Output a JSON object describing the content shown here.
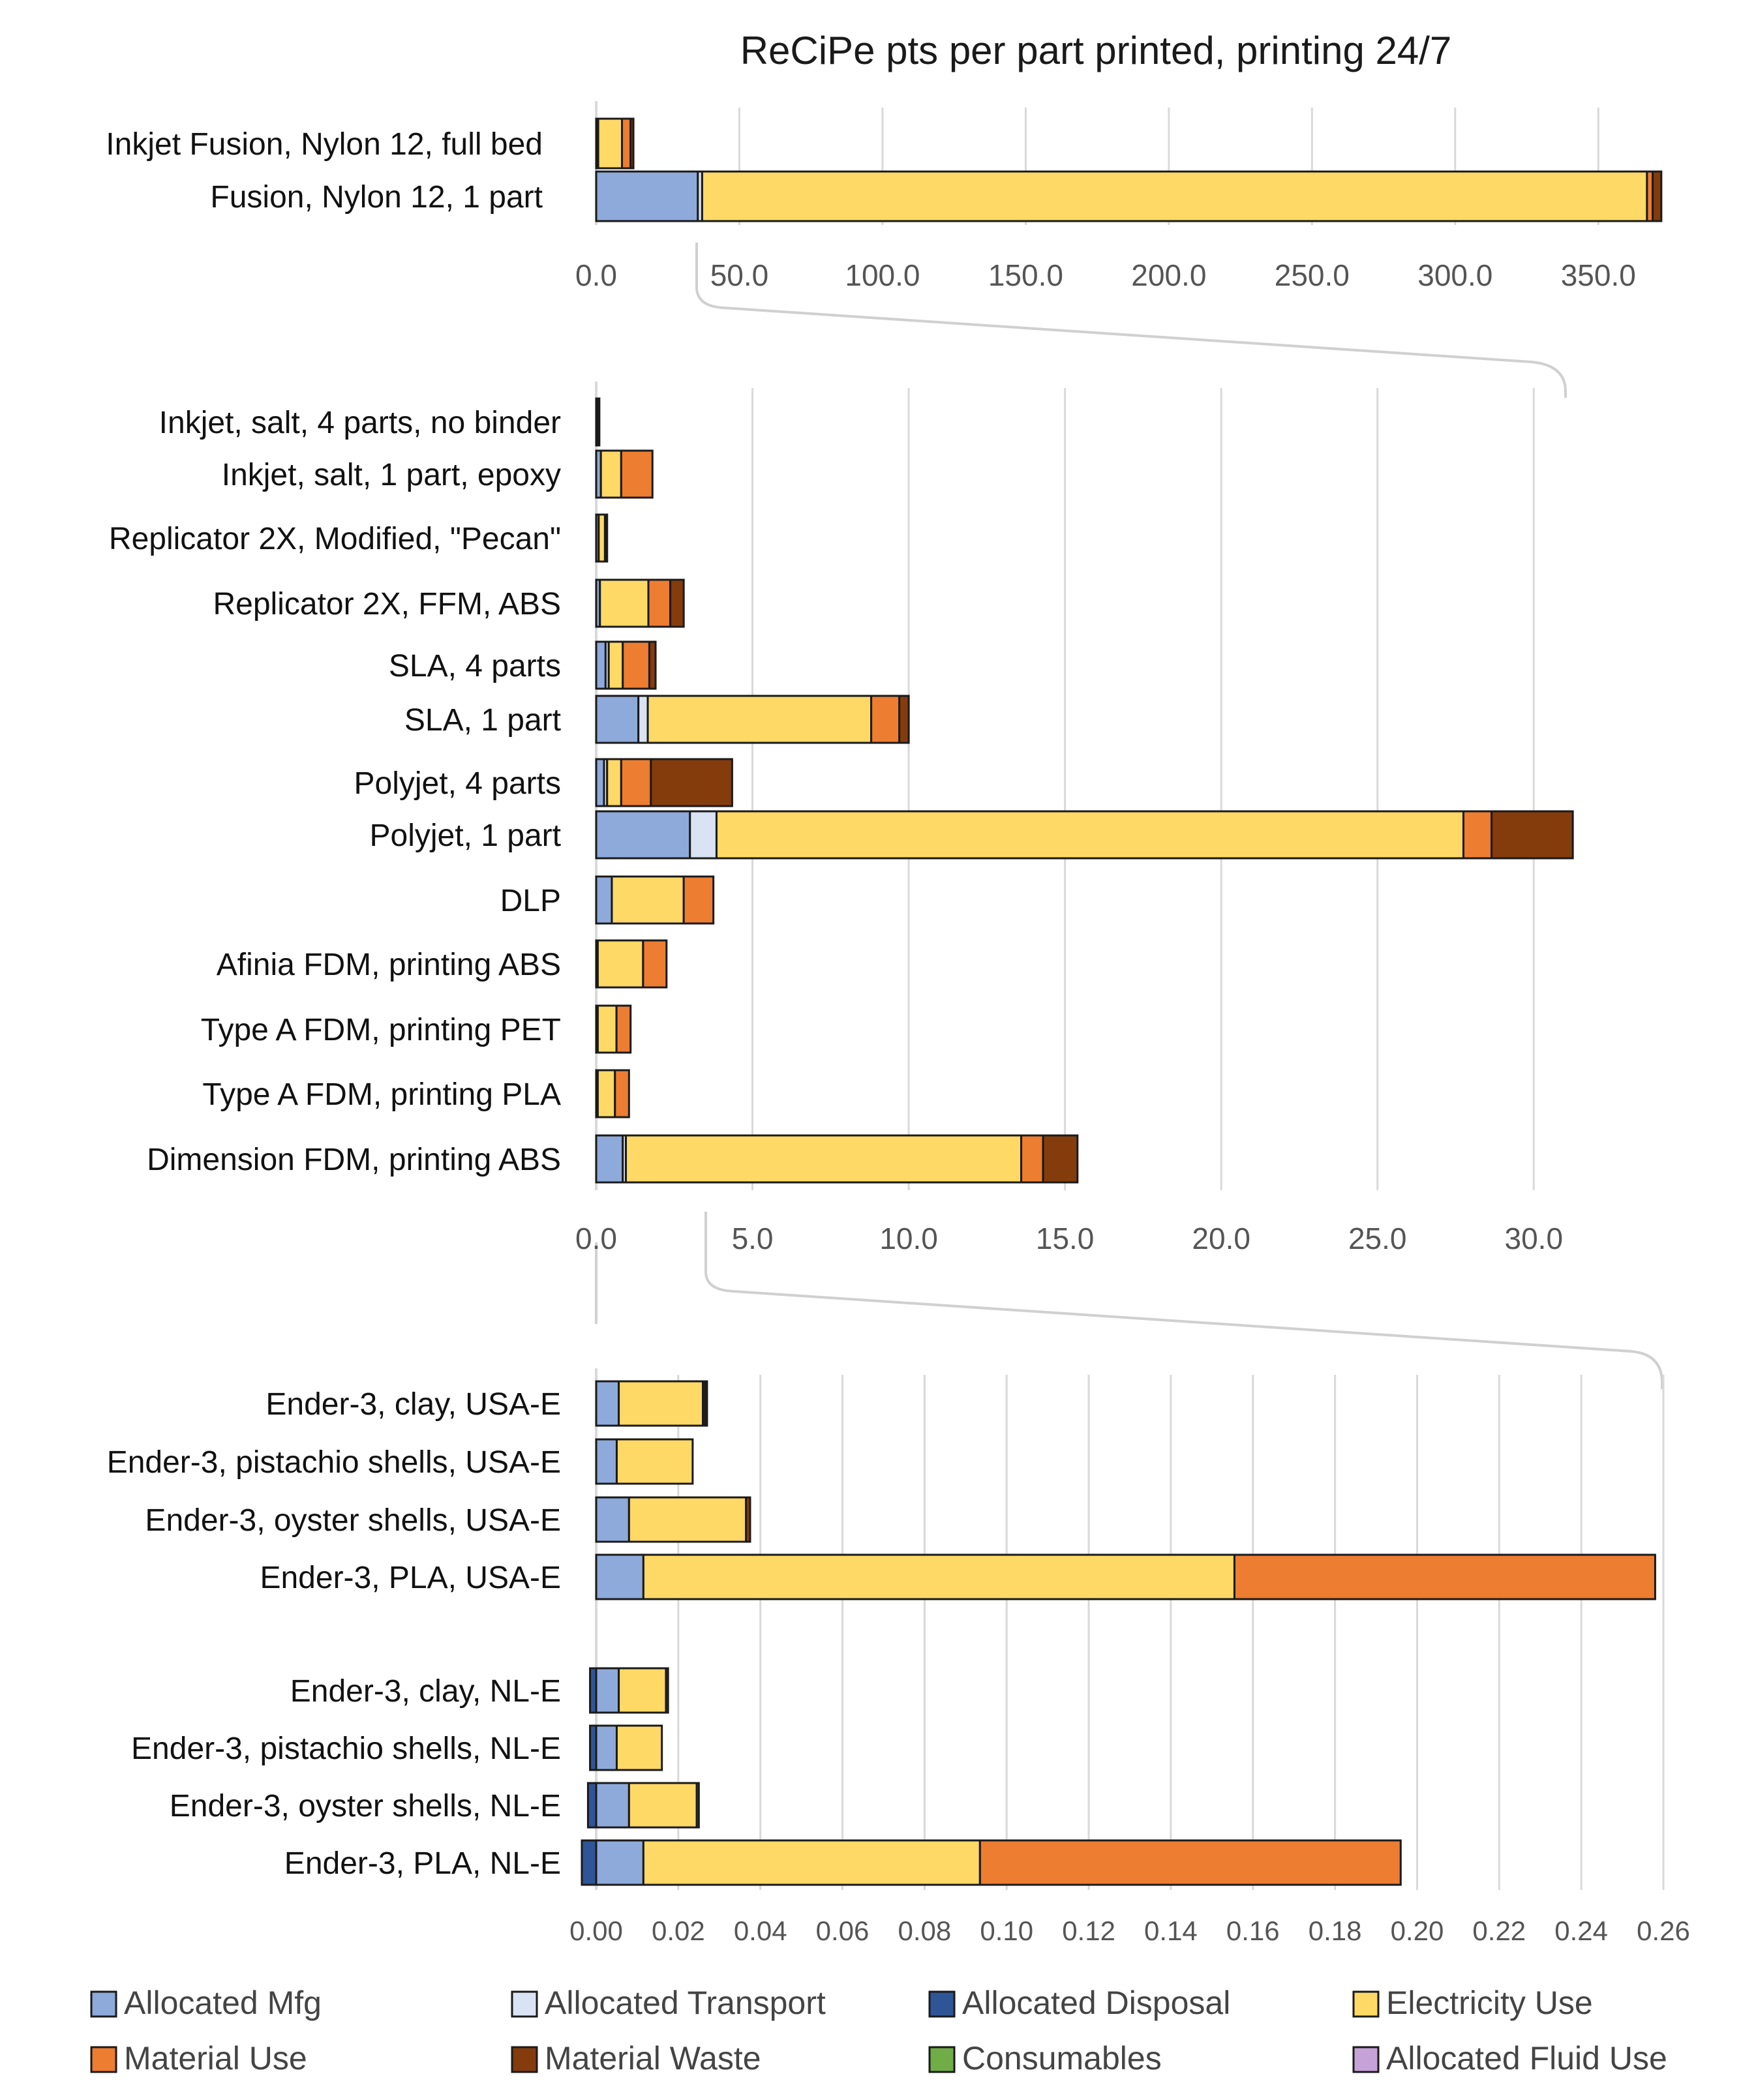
{
  "chart_data": {
    "type": "bar",
    "orientation": "horizontal",
    "stacked": true,
    "title": "ReCiPe pts per part printed, printing 24/7",
    "series_names": [
      "Allocated Mfg",
      "Allocated Transport",
      "Allocated Disposal",
      "Electricity Use",
      "Material Use",
      "Material Waste",
      "Consumables",
      "Allocated Fluid Use"
    ],
    "colors": {
      "Allocated Mfg": "#8eaadb",
      "Allocated Transport": "#dae3f3",
      "Allocated Disposal": "#2f5597",
      "Electricity Use": "#ffd966",
      "Material Use": "#ed7d31",
      "Material Waste": "#843c0c",
      "Consumables": "#70ad47",
      "Allocated Fluid Use": "#c5a3d9"
    },
    "legend": {
      "position": "bottom",
      "items": [
        {
          "name": "Allocated Mfg"
        },
        {
          "name": "Allocated Transport"
        },
        {
          "name": "Allocated Disposal"
        },
        {
          "name": "Electricity Use"
        },
        {
          "name": "Material Use"
        },
        {
          "name": "Material Waste"
        },
        {
          "name": "Consumables"
        },
        {
          "name": "Allocated Fluid Use"
        }
      ]
    },
    "panels": [
      {
        "id": "top",
        "xlim": [
          0,
          375
        ],
        "xticks": [
          "0.0",
          "50.0",
          "100.0",
          "150.0",
          "200.0",
          "250.0",
          "300.0",
          "350.0"
        ],
        "xtick_values": [
          0,
          50,
          100,
          150,
          200,
          250,
          300,
          350
        ],
        "grid": true,
        "rows": [
          {
            "label": "Inkjet Fusion, Nylon 12, full bed",
            "segments": [
              [
                "Allocated Mfg",
                0.5
              ],
              [
                "Allocated Transport",
                0.2
              ],
              [
                "Electricity Use",
                8.3
              ],
              [
                "Material Use",
                3.0
              ],
              [
                "Material Waste",
                1.0
              ]
            ]
          },
          {
            "label": "Fusion, Nylon 12, 1 part",
            "segments": [
              [
                "Allocated Mfg",
                35.5
              ],
              [
                "Allocated Transport",
                1.5
              ],
              [
                "Electricity Use",
                330.0
              ],
              [
                "Material Use",
                2.0
              ],
              [
                "Material Waste",
                3.0
              ]
            ]
          }
        ]
      },
      {
        "id": "middle",
        "xlim": [
          0,
          33
        ],
        "xticks": [
          "0.0",
          "5.0",
          "10.0",
          "15.0",
          "20.0",
          "25.0",
          "30.0"
        ],
        "xtick_values": [
          0,
          5,
          10,
          15,
          20,
          25,
          30
        ],
        "grid": true,
        "rows": [
          {
            "label": "Inkjet, salt, 4 parts, no binder",
            "segments": [
              [
                "Allocated Mfg",
                0.05
              ],
              [
                "Electricity Use",
                0.02
              ],
              [
                "Material Use",
                0.03
              ]
            ]
          },
          {
            "label": "Inkjet, salt, 1 part, epoxy",
            "segments": [
              [
                "Allocated Mfg",
                0.15
              ],
              [
                "Electricity Use",
                0.65
              ],
              [
                "Material Use",
                1.0
              ]
            ]
          },
          {
            "label": "Replicator 2X, Modified, \"Pecan\"",
            "segments": [
              [
                "Allocated Mfg",
                0.08
              ],
              [
                "Electricity Use",
                0.2
              ],
              [
                "Material Use",
                0.02
              ],
              [
                "Material Waste",
                0.05
              ]
            ]
          },
          {
            "label": "Replicator 2X, FFM, ABS",
            "segments": [
              [
                "Allocated Mfg",
                0.12
              ],
              [
                "Electricity Use",
                1.55
              ],
              [
                "Material Use",
                0.7
              ],
              [
                "Material Waste",
                0.43
              ]
            ]
          },
          {
            "label": "SLA, 4 parts",
            "segments": [
              [
                "Allocated Mfg",
                0.3
              ],
              [
                "Allocated Transport",
                0.1
              ],
              [
                "Electricity Use",
                0.45
              ],
              [
                "Material Use",
                0.85
              ],
              [
                "Material Waste",
                0.2
              ]
            ]
          },
          {
            "label": "SLA, 1 part",
            "segments": [
              [
                "Allocated Mfg",
                1.35
              ],
              [
                "Allocated Transport",
                0.3
              ],
              [
                "Electricity Use",
                7.15
              ],
              [
                "Material Use",
                0.9
              ],
              [
                "Material Waste",
                0.3
              ]
            ]
          },
          {
            "label": "Polyjet, 4 parts",
            "segments": [
              [
                "Allocated Mfg",
                0.25
              ],
              [
                "Allocated Transport",
                0.1
              ],
              [
                "Electricity Use",
                0.45
              ],
              [
                "Material Use",
                0.95
              ],
              [
                "Material Waste",
                2.6
              ]
            ]
          },
          {
            "label": "Polyjet, 1 part",
            "segments": [
              [
                "Allocated Mfg",
                3.0
              ],
              [
                "Allocated Transport",
                0.85
              ],
              [
                "Electricity Use",
                23.9
              ],
              [
                "Material Use",
                0.9
              ],
              [
                "Material Waste",
                2.6
              ]
            ]
          },
          {
            "label": "DLP",
            "segments": [
              [
                "Allocated Mfg",
                0.5
              ],
              [
                "Electricity Use",
                2.3
              ],
              [
                "Material Use",
                0.95
              ]
            ]
          },
          {
            "label": "Afinia FDM, printing ABS",
            "segments": [
              [
                "Allocated Mfg",
                0.05
              ],
              [
                "Electricity Use",
                1.45
              ],
              [
                "Material Use",
                0.75
              ]
            ]
          },
          {
            "label": "Type A FDM, printing PET",
            "segments": [
              [
                "Allocated Mfg",
                0.05
              ],
              [
                "Electricity Use",
                0.6
              ],
              [
                "Material Use",
                0.45
              ]
            ]
          },
          {
            "label": "Type A FDM, printing PLA",
            "segments": [
              [
                "Allocated Mfg",
                0.05
              ],
              [
                "Electricity Use",
                0.55
              ],
              [
                "Material Use",
                0.45
              ]
            ]
          },
          {
            "label": "Dimension FDM, printing ABS",
            "segments": [
              [
                "Allocated Mfg",
                0.85
              ],
              [
                "Allocated Transport",
                0.1
              ],
              [
                "Electricity Use",
                12.65
              ],
              [
                "Material Use",
                0.7
              ],
              [
                "Material Waste",
                1.1
              ]
            ]
          }
        ]
      },
      {
        "id": "bottom",
        "xlim": [
          0,
          0.26
        ],
        "xticks": [
          "0.00",
          "0.02",
          "0.04",
          "0.06",
          "0.08",
          "0.10",
          "0.12",
          "0.14",
          "0.16",
          "0.18",
          "0.20",
          "0.22",
          "0.24",
          "0.26"
        ],
        "xtick_values": [
          0,
          0.02,
          0.04,
          0.06,
          0.08,
          0.1,
          0.12,
          0.14,
          0.16,
          0.18,
          0.2,
          0.22,
          0.24,
          0.26
        ],
        "grid": true,
        "rows": [
          {
            "label": "Ender-3, clay, USA-E",
            "segments": [
              [
                "Allocated Mfg",
                0.0055
              ],
              [
                "Electricity Use",
                0.0205
              ],
              [
                "Material Use",
                0.0005
              ],
              [
                "Material Waste",
                0.0005
              ]
            ]
          },
          {
            "label": "Ender-3, pistachio shells, USA-E",
            "segments": [
              [
                "Allocated Mfg",
                0.005
              ],
              [
                "Electricity Use",
                0.0185
              ]
            ]
          },
          {
            "label": "Ender-3, oyster shells, USA-E",
            "segments": [
              [
                "Allocated Mfg",
                0.008
              ],
              [
                "Electricity Use",
                0.0285
              ],
              [
                "Material Waste",
                0.001
              ]
            ]
          },
          {
            "label": "Ender-3, PLA, USA-E",
            "segments": [
              [
                "Allocated Mfg",
                0.0115
              ],
              [
                "Electricity Use",
                0.144
              ],
              [
                "Material Use",
                0.1025
              ]
            ]
          },
          {
            "label": "",
            "gap": true,
            "segments": []
          },
          {
            "label": "Ender-3, clay, NL-E",
            "segments": [
              [
                "Allocated Disposal",
                -0.0015
              ],
              [
                "Allocated Mfg",
                0.0055
              ],
              [
                "Electricity Use",
                0.0115
              ],
              [
                "Material Use",
                0.0005
              ]
            ]
          },
          {
            "label": "Ender-3, pistachio shells, NL-E",
            "segments": [
              [
                "Allocated Disposal",
                -0.0015
              ],
              [
                "Allocated Mfg",
                0.005
              ],
              [
                "Electricity Use",
                0.011
              ]
            ]
          },
          {
            "label": "Ender-3, oyster shells, NL-E",
            "segments": [
              [
                "Allocated Disposal",
                -0.002
              ],
              [
                "Allocated Mfg",
                0.008
              ],
              [
                "Electricity Use",
                0.0165
              ],
              [
                "Material Use",
                0.0005
              ]
            ]
          },
          {
            "label": "Ender-3, PLA, NL-E",
            "segments": [
              [
                "Allocated Disposal",
                -0.0035
              ],
              [
                "Allocated Mfg",
                0.0115
              ],
              [
                "Electricity Use",
                0.082
              ],
              [
                "Material Use",
                0.1025
              ]
            ]
          }
        ]
      }
    ]
  }
}
